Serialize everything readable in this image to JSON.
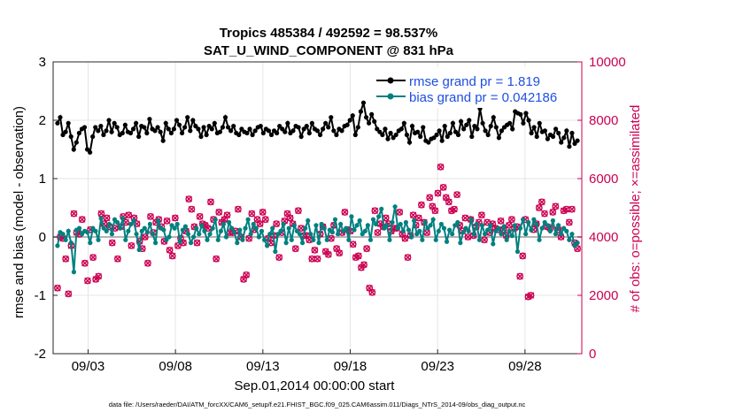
{
  "chart_data": {
    "type": "line",
    "title": "Tropics 485384 / 492592 = 98.537%",
    "subtitle": "SAT_U_WIND_COMPONENT @ 831 hPa",
    "xlabel": "Sep.01,2014 00:00:00 start",
    "ylabel": "rmse and bias (model - observation)",
    "ylabel_right": "# of obs: o=possible; ×=assimilated",
    "ylim": [
      -2,
      3
    ],
    "ylim_right": [
      0,
      10000
    ],
    "xlim": [
      1.0,
      31.25
    ],
    "yticks": [
      "3",
      "2",
      "1",
      "0",
      "-1",
      "-2"
    ],
    "yticks_right": [
      "10000",
      "8000",
      "6000",
      "4000",
      "2000",
      "0"
    ],
    "xticks": [
      {
        "day": 3,
        "label": "09/03"
      },
      {
        "day": 8,
        "label": "09/08"
      },
      {
        "day": 13,
        "label": "09/13"
      },
      {
        "day": 18,
        "label": "09/18"
      },
      {
        "day": 23,
        "label": "09/23"
      },
      {
        "day": 28,
        "label": "09/28"
      }
    ],
    "legend": [
      "rmse grand pr = 1.819",
      "bias grand pr = 0.042186"
    ],
    "footer": "data file: /Users/raeder/DAI/ATM_forcXX/CAM6_setup/f.e21.FHIST_BGC.f09_025.CAM6assim.011/Diags_NTrS_2014-09/obs_diag_output.nc",
    "series": [
      {
        "name": "rmse",
        "color": "#000000",
        "axis": "left",
        "values": [
          1.95,
          2.05,
          1.75,
          1.8,
          1.95,
          1.72,
          1.5,
          1.62,
          1.78,
          1.85,
          1.88,
          1.5,
          1.45,
          1.72,
          1.88,
          1.82,
          1.9,
          1.75,
          1.82,
          2.0,
          1.8,
          1.95,
          1.88,
          1.75,
          1.78,
          1.92,
          1.8,
          1.78,
          1.85,
          1.95,
          1.72,
          1.9,
          1.88,
          1.78,
          2.02,
          1.85,
          1.82,
          1.88,
          1.8,
          1.65,
          1.95,
          1.85,
          1.78,
          1.85,
          2.0,
          1.92,
          1.78,
          1.88,
          2.05,
          1.82,
          2.0,
          1.9,
          1.85,
          1.72,
          1.88,
          1.75,
          1.9,
          1.85,
          1.95,
          1.78,
          1.8,
          1.88,
          2.05,
          1.88,
          1.82,
          1.9,
          1.78,
          1.75,
          1.85,
          1.8,
          1.78,
          1.85,
          1.75,
          1.82,
          1.88,
          1.9,
          1.78,
          1.85,
          1.82,
          1.75,
          1.82,
          1.78,
          1.9,
          1.85,
          1.8,
          1.95,
          1.78,
          1.82,
          1.9,
          1.88,
          1.72,
          1.85,
          1.9,
          1.78,
          1.95,
          1.85,
          1.82,
          1.75,
          1.85,
          1.95,
          1.88,
          2.05,
          1.82,
          1.75,
          1.85,
          1.82,
          1.9,
          1.92,
          2.0,
          2.08,
          1.75,
          1.88,
          2.15,
          2.3,
          2.05,
          1.95,
          2.1,
          1.98,
          1.85,
          1.8,
          1.75,
          1.85,
          1.68,
          1.78,
          1.7,
          1.75,
          1.82,
          1.85,
          1.95,
          1.75,
          1.62,
          1.9,
          1.78,
          1.8,
          1.72,
          1.88,
          1.65,
          1.62,
          1.68,
          1.7,
          1.75,
          1.82,
          1.65,
          1.9,
          1.72,
          1.78,
          1.95,
          1.8,
          1.75,
          1.98,
          1.85,
          1.92,
          2.0,
          1.72,
          1.9,
          1.85,
          2.2,
          1.95,
          1.82,
          1.75,
          1.9,
          2.05,
          1.88,
          1.7,
          1.82,
          1.88,
          1.92,
          1.95,
          1.85,
          2.15,
          2.12,
          2.1,
          1.95,
          2.12,
          2.0,
          1.78,
          1.88,
          1.72,
          1.95,
          1.8,
          1.82,
          1.68,
          1.75,
          1.72,
          1.85,
          1.78,
          1.62,
          1.7,
          1.82,
          1.55,
          1.78,
          1.6,
          1.65
        ]
      },
      {
        "name": "bias",
        "color": "#008080",
        "axis": "left",
        "values": [
          -0.15,
          0.08,
          0.05,
          -0.05,
          0.1,
          -0.1,
          -0.6,
          0.12,
          0.15,
          0.05,
          0.1,
          0.08,
          -0.1,
          0.15,
          0.1,
          -0.05,
          0.32,
          0.15,
          0.1,
          0.22,
          0.05,
          0.3,
          0.25,
          0.15,
          0.32,
          -0.05,
          0.1,
          0.22,
          0.28,
          0.05,
          -0.22,
          0.1,
          0.15,
          0.08,
          0.22,
          0.05,
          -0.1,
          0.28,
          0.15,
          0.12,
          -0.05,
          0.0,
          0.2,
          0.15,
          0.22,
          -0.08,
          0.12,
          0.18,
          0.05,
          -0.1,
          0.0,
          0.15,
          0.05,
          0.2,
          0.1,
          -0.05,
          0.05,
          0.15,
          0.3,
          -0.05,
          0.1,
          0.22,
          0.0,
          0.25,
          0.15,
          0.08,
          -0.1,
          0.12,
          -0.05,
          0.15,
          0.3,
          0.05,
          0.22,
          0.15,
          0.0,
          0.1,
          -0.05,
          -0.15,
          0.05,
          0.15,
          -0.25,
          0.05,
          0.1,
          0.22,
          -0.1,
          0.15,
          -0.05,
          0.2,
          0.1,
          0.05,
          -0.1,
          0.15,
          0.28,
          0.05,
          -0.05,
          0.2,
          -0.1,
          0.22,
          0.15,
          -0.05,
          0.12,
          0.08,
          0.3,
          0.05,
          0.22,
          0.1,
          0.15,
          -0.05,
          0.35,
          0.12,
          0.2,
          0.28,
          0.05,
          0.1,
          0.2,
          -0.05,
          0.3,
          0.22,
          0.35,
          0.48,
          0.15,
          0.2,
          -0.05,
          0.25,
          0.52,
          0.15,
          0.22,
          0.1,
          0.25,
          0.12,
          0.0,
          0.28,
          0.05,
          0.1,
          -0.05,
          0.25,
          0.15,
          0.2,
          0.3,
          -0.05,
          0.1,
          0.22,
          0.15,
          -0.08,
          0.12,
          0.05,
          0.2,
          0.25,
          -0.1,
          0.08,
          0.15,
          0.1,
          0.3,
          0.05,
          0.22,
          -0.05,
          0.2,
          0.05,
          0.12,
          0.2,
          -0.12,
          0.1,
          0.15,
          0.05,
          0.18,
          -0.05,
          0.1,
          0.02,
          0.2,
          -0.25,
          0.15,
          0.3,
          0.05,
          0.25,
          0.12,
          0.3,
          0.22,
          -0.05,
          0.15,
          0.25,
          0.2,
          0.1,
          0.28,
          0.05,
          0.2,
          0.05,
          0.15,
          0.1,
          -0.05,
          0.05,
          -0.15,
          -0.1
        ]
      },
      {
        "name": "obs possible",
        "color": "#cc0052",
        "axis": "right",
        "marker": "o",
        "values": [
          2250,
          4000,
          3950,
          3250,
          2050,
          3700,
          4800,
          4150,
          4100,
          4600,
          3100,
          2500,
          4250,
          3300,
          2550,
          2650,
          4800,
          4450,
          4650,
          4350,
          3800,
          4300,
          3250,
          4350,
          4700,
          4500,
          4750,
          3700,
          4650,
          4450,
          3850,
          3600,
          4000,
          3100,
          4700,
          4150,
          4500,
          4600,
          4350,
          3850,
          4550,
          3550,
          3350,
          4650,
          3700,
          3950,
          3800,
          4200,
          5300,
          4950,
          4350,
          3800,
          4700,
          4450,
          4400,
          4300,
          5200,
          4600,
          3250,
          4850,
          4500,
          4600,
          4750,
          4150,
          4150,
          4200,
          4950,
          4000,
          2550,
          2700,
          3950,
          4800,
          4250,
          4600,
          4450,
          4850,
          4600,
          3950,
          3800,
          4050,
          4450,
          3300,
          4150,
          4550,
          4800,
          4650,
          4450,
          3600,
          4900,
          4300,
          4050,
          4050,
          3900,
          3250,
          3550,
          3250,
          4100,
          4350,
          3500,
          3400,
          3950,
          4400,
          3600,
          3450,
          4150,
          4850,
          4250,
          4200,
          3750,
          3300,
          3350,
          2950,
          3050,
          3600,
          2250,
          2100,
          4900,
          4150,
          4450,
          4350,
          4650,
          4450,
          4200,
          4300,
          4300,
          4850,
          4100,
          3950,
          3300,
          4050,
          4750,
          4400,
          4650,
          5100,
          4500,
          4150,
          5350,
          5050,
          4900,
          5500,
          6400,
          5700,
          5350,
          5200,
          4900,
          4950,
          5450,
          4400,
          4200,
          4650,
          4000,
          4600,
          4050,
          4350,
          4500,
          4750,
          3900,
          4500,
          4150,
          4450,
          4300,
          4250,
          4550,
          4250,
          4050,
          4400,
          4600,
          4300,
          4350,
          2650,
          3350,
          4600,
          1950,
          2000,
          4250,
          4450,
          5000,
          5200,
          4800,
          4350,
          4300,
          4850,
          5050,
          4250,
          4000,
          4900,
          4950,
          4500,
          4950,
          3800,
          3600
        ]
      },
      {
        "name": "obs assimilated",
        "color": "#cc0052",
        "axis": "right",
        "marker": "x",
        "values": [
          2250,
          4000,
          3950,
          3250,
          2050,
          3700,
          4800,
          4150,
          4100,
          4600,
          3100,
          2500,
          4250,
          3300,
          2550,
          2650,
          4800,
          4450,
          4650,
          4350,
          3800,
          4300,
          3250,
          4350,
          4700,
          4500,
          4750,
          3700,
          4650,
          4450,
          3850,
          3600,
          4000,
          3100,
          4700,
          4150,
          4500,
          4600,
          4350,
          3850,
          4550,
          3550,
          3350,
          4650,
          3700,
          3950,
          3800,
          4200,
          5300,
          4950,
          4350,
          3800,
          4700,
          4450,
          4400,
          4300,
          5200,
          4600,
          3250,
          4850,
          4500,
          4600,
          4750,
          4150,
          4150,
          4200,
          4950,
          4000,
          2550,
          2700,
          3950,
          4800,
          4250,
          4600,
          4450,
          4850,
          4600,
          3950,
          3800,
          4050,
          4450,
          3300,
          4150,
          4550,
          4800,
          4650,
          4450,
          3600,
          4900,
          4300,
          4050,
          4050,
          3900,
          3250,
          3550,
          3250,
          4100,
          4350,
          3500,
          3400,
          3950,
          4400,
          3600,
          3450,
          4150,
          4850,
          4250,
          4200,
          3750,
          3300,
          3350,
          2950,
          3050,
          3600,
          2250,
          2100,
          4900,
          4150,
          4450,
          4350,
          4650,
          4450,
          4200,
          4300,
          4300,
          4850,
          4100,
          3950,
          3300,
          4050,
          4750,
          4400,
          4650,
          5100,
          4500,
          4150,
          5350,
          5050,
          4900,
          5500,
          6400,
          5700,
          5350,
          5200,
          4900,
          4950,
          5450,
          4400,
          4200,
          4650,
          4000,
          4600,
          4050,
          4350,
          4500,
          4750,
          3900,
          4500,
          4150,
          4450,
          4300,
          4250,
          4550,
          4250,
          4050,
          4400,
          4600,
          4300,
          4350,
          2650,
          3350,
          4600,
          1950,
          2000,
          4250,
          4450,
          5000,
          5200,
          4800,
          4350,
          4300,
          4850,
          5050,
          4250,
          4000,
          4900,
          4950,
          4500,
          4950,
          3800,
          3600
        ]
      }
    ]
  }
}
